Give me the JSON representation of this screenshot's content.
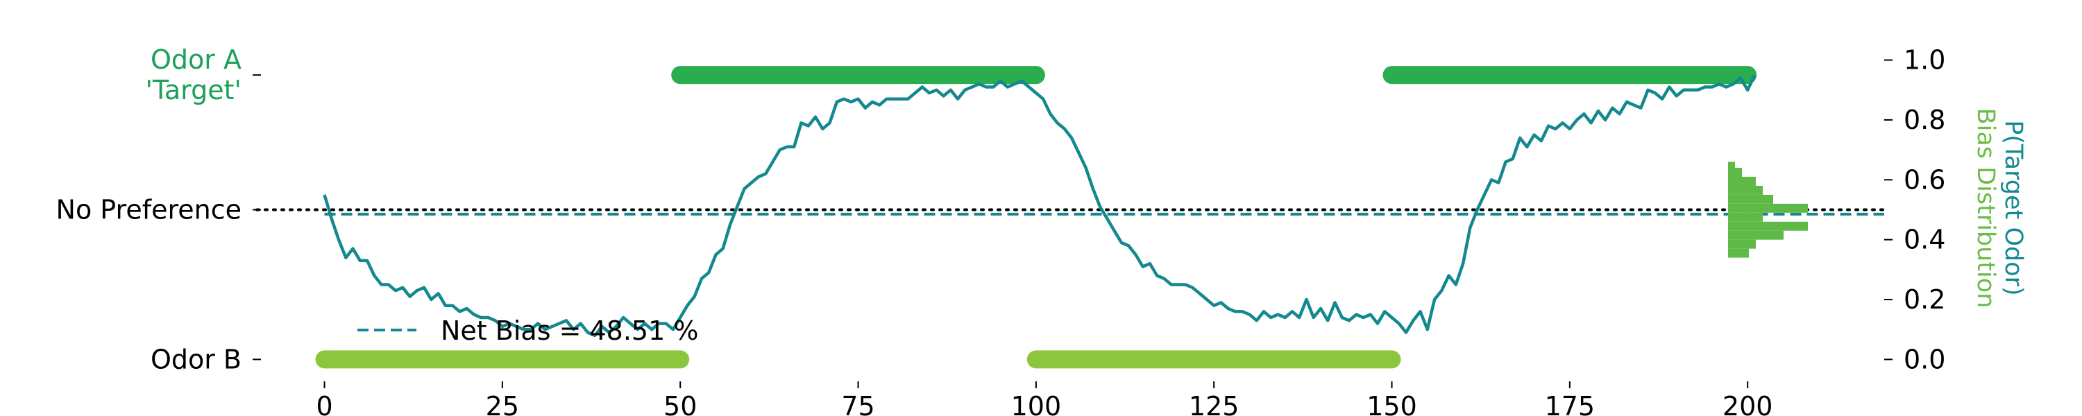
{
  "chart_data": {
    "type": "line",
    "xlim": [
      -10,
      219
    ],
    "ylim": [
      -0.05,
      1.05
    ],
    "x_ticks": [
      0,
      25,
      50,
      75,
      100,
      125,
      150,
      175,
      200
    ],
    "right_axis": {
      "ticks": [
        0.0,
        0.2,
        0.4,
        0.6,
        0.8,
        1.0
      ],
      "tick_labels": [
        "0.0",
        "0.2",
        "0.4",
        "0.6",
        "0.8",
        "1.0"
      ],
      "label_outer": "P(Target Odor)",
      "label_inner": "Bias Distribution"
    },
    "left_axis": {
      "ticks": [
        {
          "y": 0.0,
          "lines": [
            "Odor B"
          ],
          "color": "#000000"
        },
        {
          "y": 0.5,
          "lines": [
            "No Preference"
          ],
          "color": "#000000"
        },
        {
          "y": 0.95,
          "lines": [
            "Odor A",
            "'Target'"
          ],
          "color": "#1aa15a"
        }
      ]
    },
    "no_preference": 0.5,
    "net_bias": 0.4851,
    "legend": {
      "label": "Net Bias = 48.51 %"
    },
    "odor_blocks": [
      {
        "odor": "B",
        "y": 0.0,
        "start": 0,
        "end": 50
      },
      {
        "odor": "A",
        "y": 0.95,
        "start": 50,
        "end": 100
      },
      {
        "odor": "B",
        "y": 0.0,
        "start": 100,
        "end": 150
      },
      {
        "odor": "A",
        "y": 0.95,
        "start": 150,
        "end": 200
      }
    ],
    "series": [
      {
        "x_start": 0,
        "values": [
          0.55,
          0.47,
          0.4,
          0.34,
          0.37,
          0.33,
          0.33,
          0.28,
          0.25,
          0.25,
          0.23,
          0.24,
          0.21,
          0.23,
          0.24,
          0.2,
          0.22,
          0.18,
          0.18,
          0.16,
          0.17,
          0.15,
          0.14,
          0.14,
          0.13,
          0.11,
          0.12,
          0.11,
          0.1,
          0.1,
          0.12,
          0.1,
          0.11,
          0.12,
          0.13,
          0.1,
          0.12,
          0.09,
          0.08,
          0.11,
          0.09,
          0.11,
          0.14,
          0.12,
          0.1,
          0.12,
          0.1,
          0.12,
          0.12,
          0.1,
          0.14,
          0.18,
          0.21,
          0.27,
          0.29,
          0.35,
          0.37,
          0.45,
          0.51,
          0.57,
          0.59,
          0.61,
          0.62,
          0.66,
          0.7,
          0.71,
          0.71,
          0.79,
          0.78,
          0.81,
          0.77,
          0.79,
          0.86,
          0.87,
          0.86,
          0.87,
          0.84,
          0.86,
          0.85,
          0.87,
          0.87,
          0.87,
          0.87,
          0.89,
          0.91,
          0.89,
          0.9,
          0.88,
          0.9,
          0.87,
          0.9,
          0.91,
          0.92,
          0.91,
          0.91,
          0.93,
          0.91,
          0.92,
          0.93,
          0.91,
          0.89,
          0.87,
          0.82,
          0.79,
          0.77,
          0.74,
          0.69,
          0.64,
          0.57,
          0.51,
          0.47,
          0.43,
          0.39,
          0.38,
          0.35,
          0.31,
          0.32,
          0.28,
          0.27,
          0.25,
          0.25,
          0.25,
          0.24,
          0.22,
          0.2,
          0.18,
          0.19,
          0.17,
          0.16,
          0.16,
          0.15,
          0.13,
          0.16,
          0.14,
          0.15,
          0.14,
          0.16,
          0.14,
          0.2,
          0.14,
          0.17,
          0.13,
          0.19,
          0.14,
          0.13,
          0.15,
          0.14,
          0.15,
          0.12,
          0.16,
          0.14,
          0.12,
          0.09,
          0.13,
          0.16,
          0.1,
          0.2,
          0.23,
          0.28,
          0.25,
          0.32,
          0.44,
          0.5,
          0.55,
          0.6,
          0.59,
          0.66,
          0.67,
          0.74,
          0.71,
          0.75,
          0.73,
          0.78,
          0.77,
          0.79,
          0.77,
          0.8,
          0.82,
          0.79,
          0.83,
          0.8,
          0.84,
          0.82,
          0.86,
          0.85,
          0.84,
          0.9,
          0.89,
          0.87,
          0.91,
          0.88,
          0.9,
          0.9,
          0.9,
          0.91,
          0.91,
          0.92,
          0.91,
          0.92,
          0.94,
          0.9,
          0.95
        ]
      }
    ],
    "histogram": {
      "orientation": "horizontal",
      "bins": [
        {
          "y0": 0.34,
          "y1": 0.37,
          "count": 6
        },
        {
          "y0": 0.37,
          "y1": 0.4,
          "count": 8
        },
        {
          "y0": 0.4,
          "y1": 0.43,
          "count": 16
        },
        {
          "y0": 0.43,
          "y1": 0.46,
          "count": 23
        },
        {
          "y0": 0.46,
          "y1": 0.49,
          "count": 10
        },
        {
          "y0": 0.49,
          "y1": 0.52,
          "count": 23
        },
        {
          "y0": 0.52,
          "y1": 0.55,
          "count": 13
        },
        {
          "y0": 0.55,
          "y1": 0.58,
          "count": 10
        },
        {
          "y0": 0.58,
          "y1": 0.61,
          "count": 8
        },
        {
          "y0": 0.61,
          "y1": 0.64,
          "count": 4
        },
        {
          "y0": 0.64,
          "y1": 0.66,
          "count": 2
        }
      ]
    },
    "colors": {
      "line": "#13898f",
      "odor_a": "#2aad4e",
      "odor_b": "#8cc63f",
      "histogram": "#5fb947",
      "target_label": "#1aa15a",
      "right_label_outer": "#13898f",
      "right_label_inner": "#6cbd45",
      "axis": "#000000"
    }
  }
}
